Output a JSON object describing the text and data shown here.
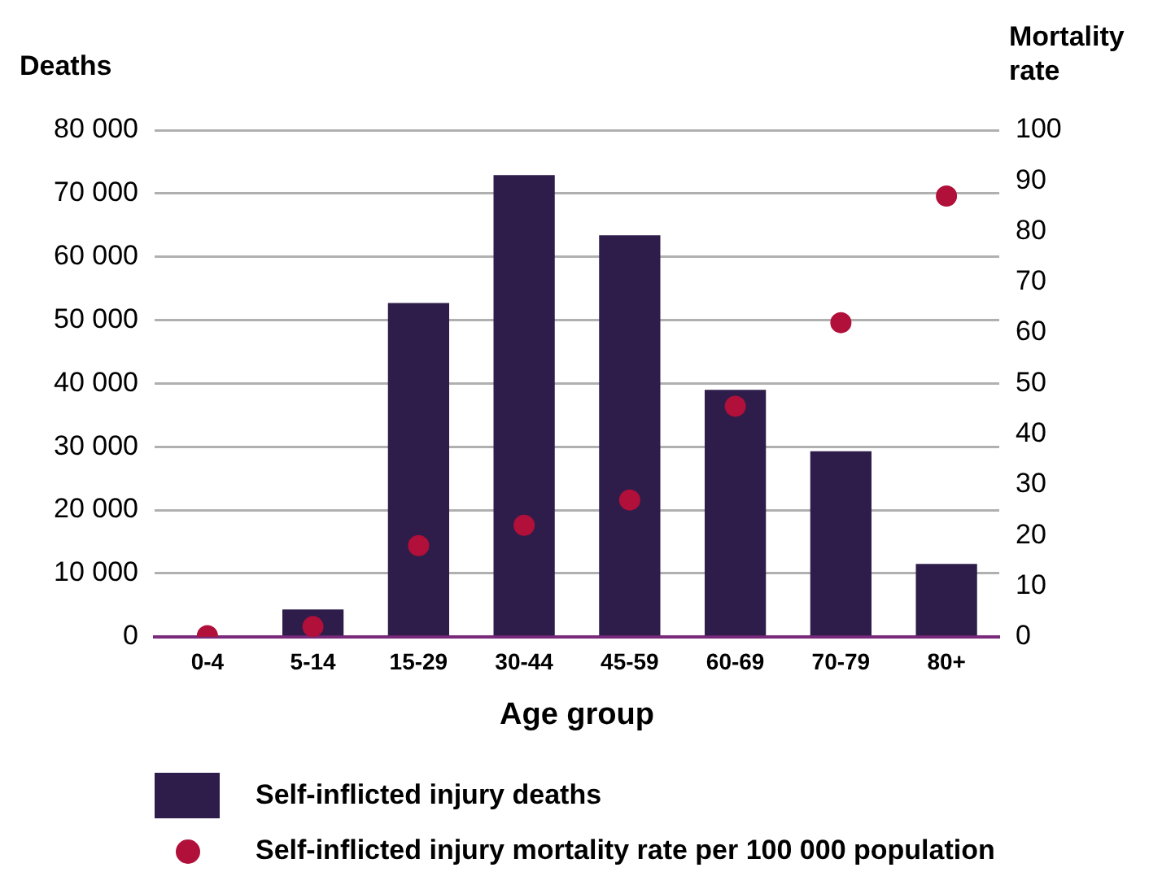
{
  "chart_data": {
    "type": "bar",
    "xlabel": "Age group",
    "ylabel": "Deaths",
    "y2label": "Mortality rate",
    "categories": [
      "0-4",
      "5-14",
      "15-29",
      "30-44",
      "45-59",
      "60-69",
      "70-79",
      "80+"
    ],
    "series": [
      {
        "name": "Self-inflicted injury deaths",
        "color": "#2e1d4a",
        "values": [
          0,
          4300,
          52700,
          72900,
          63400,
          39000,
          29300,
          11500
        ]
      },
      {
        "name": "Self-inflicted injury mortality rate per 100 000 population",
        "type": "scatter",
        "axis": "y2",
        "color": "#b0103a",
        "values": [
          0.2,
          2,
          18,
          22,
          27,
          45.5,
          62,
          87
        ]
      }
    ],
    "ylim": [
      0,
      80000
    ],
    "yticks": [
      {
        "value": 0,
        "label": "0"
      },
      {
        "value": 10000,
        "label": "10 000"
      },
      {
        "value": 20000,
        "label": "20 000"
      },
      {
        "value": 30000,
        "label": "30 000"
      },
      {
        "value": 40000,
        "label": "40 000"
      },
      {
        "value": 50000,
        "label": "50 000"
      },
      {
        "value": 60000,
        "label": "60 000"
      },
      {
        "value": 70000,
        "label": "70 000"
      },
      {
        "value": 80000,
        "label": "80 000"
      }
    ],
    "y2lim": [
      0,
      100
    ],
    "y2ticks": [
      0,
      10,
      20,
      30,
      40,
      50,
      60,
      70,
      80,
      90,
      100
    ],
    "grid": "y",
    "legend": "bottom",
    "marker": "circle"
  }
}
